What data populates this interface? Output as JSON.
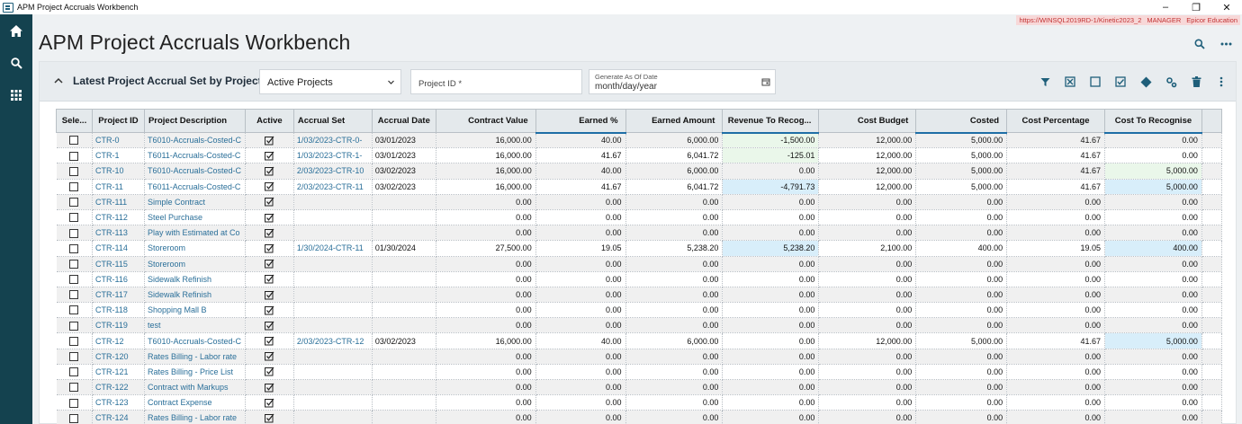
{
  "window": {
    "title": "APM Project Accruals Workbench",
    "minimize": "–",
    "maximize": "❐",
    "close": "✕"
  },
  "env": {
    "url": "https://WINSQL2019RD-1/Kinetic2023_2",
    "user": "MANAGER",
    "company": "Epicor Education"
  },
  "nav": {
    "items": [
      "home-icon",
      "search-icon",
      "apps-grid-icon"
    ]
  },
  "page": {
    "title": "APM Project Accruals Workbench"
  },
  "panel": {
    "title": "Latest Project Accrual Set by Project",
    "filter_value": "Active Projects",
    "project_id_placeholder": "Project ID *",
    "date_label": "Generate As Of Date",
    "date_value": "month/day/year"
  },
  "colors": {
    "nav_bg": "#14424f",
    "link": "#2a6f99",
    "toolbar_icon": "#1f5f7a",
    "highlight_green": "#eaf7ea",
    "highlight_blue": "#d8eefa",
    "env_banner": "#f7d8d8"
  },
  "grid": {
    "columns": [
      "Sele...",
      "Project ID",
      "Project Description",
      "Active",
      "Accrual Set",
      "Accrual Date",
      "Contract Value",
      "Earned %",
      "Earned Amount",
      "Revenue To Recog...",
      "Cost Budget",
      "Costed",
      "Cost Percentage",
      "Cost To Recognise"
    ],
    "rows": [
      {
        "id": "CTR-0",
        "desc": "T6010-Accruals-Costed-C",
        "set": "1/03/2023-CTR-0-",
        "date": "03/01/2023",
        "cv": "16,000.00",
        "ep": "40.00",
        "ea": "6,000.00",
        "rev": "-1,500.00",
        "cb": "12,000.00",
        "costed": "5,000.00",
        "cp": "41.67",
        "ctr": "0.00",
        "rev_hl": "green",
        "ctr_hl": ""
      },
      {
        "id": "CTR-1",
        "desc": "T6011-Accruals-Costed-C",
        "set": "1/03/2023-CTR-1-",
        "date": "03/01/2023",
        "cv": "16,000.00",
        "ep": "41.67",
        "ea": "6,041.72",
        "rev": "-125.01",
        "cb": "12,000.00",
        "costed": "5,000.00",
        "cp": "41.67",
        "ctr": "0.00",
        "rev_hl": "green",
        "ctr_hl": ""
      },
      {
        "id": "CTR-10",
        "desc": "T6010-Accruals-Costed-C",
        "set": "2/03/2023-CTR-10",
        "date": "03/02/2023",
        "cv": "16,000.00",
        "ep": "40.00",
        "ea": "6,000.00",
        "rev": "0.00",
        "cb": "12,000.00",
        "costed": "5,000.00",
        "cp": "41.67",
        "ctr": "5,000.00",
        "rev_hl": "",
        "ctr_hl": "green"
      },
      {
        "id": "CTR-11",
        "desc": "T6011-Accruals-Costed-C",
        "set": "2/03/2023-CTR-11",
        "date": "03/02/2023",
        "cv": "16,000.00",
        "ep": "41.67",
        "ea": "6,041.72",
        "rev": "-4,791.73",
        "cb": "12,000.00",
        "costed": "5,000.00",
        "cp": "41.67",
        "ctr": "5,000.00",
        "rev_hl": "blue",
        "ctr_hl": "blue"
      },
      {
        "id": "CTR-111",
        "desc": "Simple Contract",
        "set": "",
        "date": "",
        "cv": "0.00",
        "ep": "0.00",
        "ea": "0.00",
        "rev": "0.00",
        "cb": "0.00",
        "costed": "0.00",
        "cp": "0.00",
        "ctr": "0.00",
        "rev_hl": "",
        "ctr_hl": ""
      },
      {
        "id": "CTR-112",
        "desc": "Steel Purchase",
        "set": "",
        "date": "",
        "cv": "0.00",
        "ep": "0.00",
        "ea": "0.00",
        "rev": "0.00",
        "cb": "0.00",
        "costed": "0.00",
        "cp": "0.00",
        "ctr": "0.00",
        "rev_hl": "",
        "ctr_hl": ""
      },
      {
        "id": "CTR-113",
        "desc": "Play with Estimated at Co",
        "set": "",
        "date": "",
        "cv": "0.00",
        "ep": "0.00",
        "ea": "0.00",
        "rev": "0.00",
        "cb": "0.00",
        "costed": "0.00",
        "cp": "0.00",
        "ctr": "0.00",
        "rev_hl": "",
        "ctr_hl": ""
      },
      {
        "id": "CTR-114",
        "desc": "Storeroom",
        "set": "1/30/2024-CTR-11",
        "date": "01/30/2024",
        "cv": "27,500.00",
        "ep": "19.05",
        "ea": "5,238.20",
        "rev": "5,238.20",
        "cb": "2,100.00",
        "costed": "400.00",
        "cp": "19.05",
        "ctr": "400.00",
        "rev_hl": "blue",
        "ctr_hl": "blue"
      },
      {
        "id": "CTR-115",
        "desc": "Storeroom",
        "set": "",
        "date": "",
        "cv": "0.00",
        "ep": "0.00",
        "ea": "0.00",
        "rev": "0.00",
        "cb": "0.00",
        "costed": "0.00",
        "cp": "0.00",
        "ctr": "0.00",
        "rev_hl": "",
        "ctr_hl": ""
      },
      {
        "id": "CTR-116",
        "desc": "Sidewalk Refinish",
        "set": "",
        "date": "",
        "cv": "0.00",
        "ep": "0.00",
        "ea": "0.00",
        "rev": "0.00",
        "cb": "0.00",
        "costed": "0.00",
        "cp": "0.00",
        "ctr": "0.00",
        "rev_hl": "",
        "ctr_hl": ""
      },
      {
        "id": "CTR-117",
        "desc": "Sidewalk Refinish",
        "set": "",
        "date": "",
        "cv": "0.00",
        "ep": "0.00",
        "ea": "0.00",
        "rev": "0.00",
        "cb": "0.00",
        "costed": "0.00",
        "cp": "0.00",
        "ctr": "0.00",
        "rev_hl": "",
        "ctr_hl": ""
      },
      {
        "id": "CTR-118",
        "desc": "Shopping Mall B",
        "set": "",
        "date": "",
        "cv": "0.00",
        "ep": "0.00",
        "ea": "0.00",
        "rev": "0.00",
        "cb": "0.00",
        "costed": "0.00",
        "cp": "0.00",
        "ctr": "0.00",
        "rev_hl": "",
        "ctr_hl": ""
      },
      {
        "id": "CTR-119",
        "desc": "test",
        "set": "",
        "date": "",
        "cv": "0.00",
        "ep": "0.00",
        "ea": "0.00",
        "rev": "0.00",
        "cb": "0.00",
        "costed": "0.00",
        "cp": "0.00",
        "ctr": "0.00",
        "rev_hl": "",
        "ctr_hl": ""
      },
      {
        "id": "CTR-12",
        "desc": "T6010-Accruals-Costed-C",
        "set": "2/03/2023-CTR-12",
        "date": "03/02/2023",
        "cv": "16,000.00",
        "ep": "40.00",
        "ea": "6,000.00",
        "rev": "0.00",
        "cb": "12,000.00",
        "costed": "5,000.00",
        "cp": "41.67",
        "ctr": "5,000.00",
        "rev_hl": "",
        "ctr_hl": "blue"
      },
      {
        "id": "CTR-120",
        "desc": "Rates Billing - Labor rate",
        "set": "",
        "date": "",
        "cv": "0.00",
        "ep": "0.00",
        "ea": "0.00",
        "rev": "0.00",
        "cb": "0.00",
        "costed": "0.00",
        "cp": "0.00",
        "ctr": "0.00",
        "rev_hl": "",
        "ctr_hl": ""
      },
      {
        "id": "CTR-121",
        "desc": "Rates Billing - Price List",
        "set": "",
        "date": "",
        "cv": "0.00",
        "ep": "0.00",
        "ea": "0.00",
        "rev": "0.00",
        "cb": "0.00",
        "costed": "0.00",
        "cp": "0.00",
        "ctr": "0.00",
        "rev_hl": "",
        "ctr_hl": ""
      },
      {
        "id": "CTR-122",
        "desc": "Contract with Markups",
        "set": "",
        "date": "",
        "cv": "0.00",
        "ep": "0.00",
        "ea": "0.00",
        "rev": "0.00",
        "cb": "0.00",
        "costed": "0.00",
        "cp": "0.00",
        "ctr": "0.00",
        "rev_hl": "",
        "ctr_hl": ""
      },
      {
        "id": "CTR-123",
        "desc": "Contract Expense",
        "set": "",
        "date": "",
        "cv": "0.00",
        "ep": "0.00",
        "ea": "0.00",
        "rev": "0.00",
        "cb": "0.00",
        "costed": "0.00",
        "cp": "0.00",
        "ctr": "0.00",
        "rev_hl": "",
        "ctr_hl": ""
      },
      {
        "id": "CTR-124",
        "desc": "Rates Billing - Labor rate",
        "set": "",
        "date": "",
        "cv": "0.00",
        "ep": "0.00",
        "ea": "0.00",
        "rev": "0.00",
        "cb": "0.00",
        "costed": "0.00",
        "cp": "0.00",
        "ctr": "0.00",
        "rev_hl": "",
        "ctr_hl": ""
      }
    ]
  }
}
